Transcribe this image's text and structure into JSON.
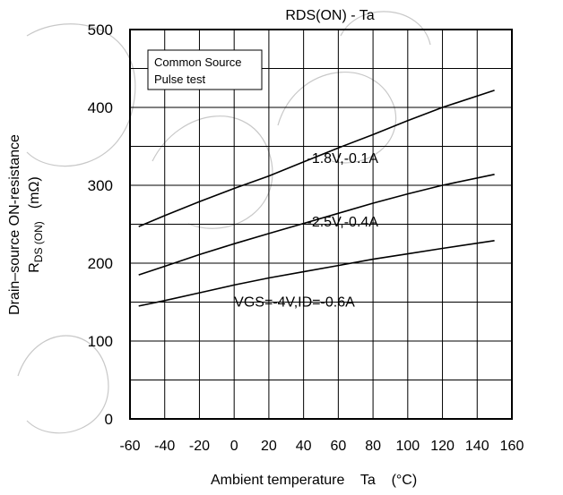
{
  "chart_data": {
    "type": "line",
    "title": "RDS(ON) - Ta",
    "xlabel": "Ambient temperature    Ta    (°C)",
    "ylabel_line1": "Drain–source ON-resistance",
    "ylabel_line2_main": "R",
    "ylabel_line2_sub": "DS (ON)",
    "ylabel_line2_unit": "(mΩ)",
    "xlim": [
      -60,
      160
    ],
    "ylim": [
      0,
      500
    ],
    "x_ticks": [
      "-60",
      "-40",
      "-20",
      "0",
      "20",
      "40",
      "60",
      "80",
      "100",
      "120",
      "140",
      "160"
    ],
    "y_ticks": [
      "0",
      "100",
      "200",
      "300",
      "400",
      "500"
    ],
    "grid": true,
    "legend_box": [
      "Common Source",
      "Pulse test"
    ],
    "series": [
      {
        "name": "-1.8V,-0.1A",
        "x": [
          -55,
          -40,
          -20,
          0,
          20,
          40,
          60,
          80,
          100,
          120,
          150
        ],
        "y": [
          247,
          261,
          279,
          296,
          312,
          330,
          348,
          365,
          383,
          400,
          422
        ]
      },
      {
        "name": "-2.5V,-0.4A",
        "x": [
          -55,
          -40,
          -20,
          0,
          20,
          40,
          60,
          80,
          100,
          120,
          150
        ],
        "y": [
          185,
          196,
          211,
          225,
          238,
          251,
          264,
          277,
          289,
          300,
          314
        ]
      },
      {
        "name": "VGS=-4V,ID=-0.6A",
        "x": [
          -55,
          -40,
          -20,
          0,
          20,
          40,
          60,
          80,
          100,
          120,
          150
        ],
        "y": [
          145,
          152,
          162,
          172,
          181,
          189,
          197,
          205,
          212,
          219,
          229
        ]
      }
    ]
  }
}
